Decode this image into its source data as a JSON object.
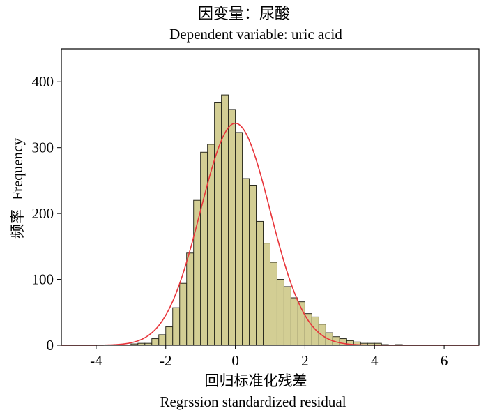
{
  "chart_data": {
    "type": "bar",
    "title": "因变量：尿酸",
    "subtitle": "Dependent variable: uric acid",
    "xlabel_cn": "回归标准化残差",
    "xlabel": "Regrssion standardized residual",
    "ylabel_cn": "频率",
    "ylabel": "Frequency",
    "xlim": [
      -5,
      7
    ],
    "ylim": [
      0,
      450
    ],
    "x_ticks": [
      -4,
      -2,
      0,
      2,
      4,
      6
    ],
    "y_ticks": [
      0,
      100,
      200,
      300,
      400
    ],
    "bin_width": 0.2,
    "bin_starts": [
      -3.0,
      -2.8,
      -2.6,
      -2.4,
      -2.2,
      -2.0,
      -1.8,
      -1.6,
      -1.4,
      -1.2,
      -1.0,
      -0.8,
      -0.6,
      -0.4,
      -0.2,
      0.0,
      0.2,
      0.4,
      0.6,
      0.8,
      1.0,
      1.2,
      1.4,
      1.6,
      1.8,
      2.0,
      2.2,
      2.4,
      2.6,
      2.8,
      3.0,
      3.2,
      3.4,
      3.6,
      3.8,
      4.0,
      4.2,
      4.4,
      4.6
    ],
    "values": [
      2,
      3,
      3,
      10,
      16,
      28,
      57,
      94,
      140,
      220,
      293,
      305,
      369,
      380,
      358,
      323,
      253,
      243,
      188,
      155,
      126,
      100,
      89,
      72,
      66,
      48,
      43,
      32,
      19,
      13,
      10,
      7,
      5,
      3,
      3,
      3,
      1,
      0,
      1
    ],
    "normal_curve": {
      "mean": 0.0,
      "sd": 1.0,
      "peak": 337
    },
    "colors": {
      "bar_fill": "#d3ce94",
      "bar_edge": "#2b2b1f",
      "curve": "#e8343a"
    }
  }
}
